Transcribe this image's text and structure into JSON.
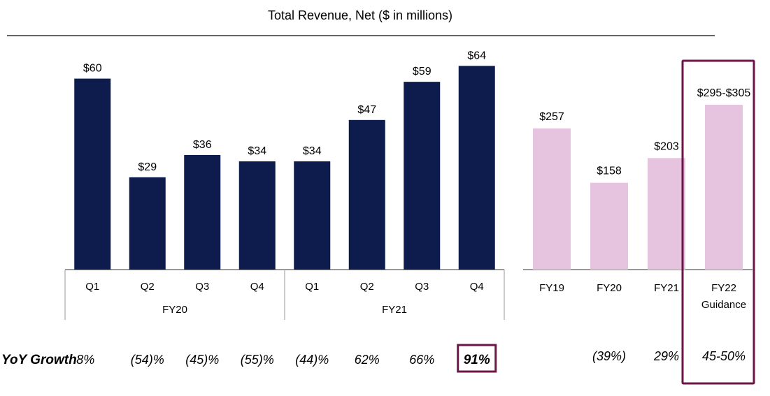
{
  "chart_data": {
    "title": "Total Revenue, Net ($ in millions)",
    "colors": {
      "quarterly": "#0d1c4c",
      "annual": "#e6c3df",
      "highlight": "#6c1548",
      "rule": "#333333"
    },
    "quarterly": {
      "type": "bar",
      "ylim": [
        0,
        70
      ],
      "categories": [
        "Q1",
        "Q2",
        "Q3",
        "Q4",
        "Q1",
        "Q2",
        "Q3",
        "Q4"
      ],
      "groups": [
        {
          "label": "FY20",
          "categories": [
            "Q1",
            "Q2",
            "Q3",
            "Q4"
          ]
        },
        {
          "label": "FY21",
          "categories": [
            "Q1",
            "Q2",
            "Q3",
            "Q4"
          ]
        }
      ],
      "values": [
        60,
        29,
        36,
        34,
        34,
        47,
        59,
        64
      ],
      "value_labels": [
        "$60",
        "$29",
        "$36",
        "$34",
        "$34",
        "$47",
        "$59",
        "$64"
      ]
    },
    "annual": {
      "type": "bar",
      "ylim": [
        0,
        300
      ],
      "categories": [
        "FY19",
        "FY20",
        "FY21",
        "FY22 Guidance"
      ],
      "values": [
        257,
        158,
        203,
        300
      ],
      "value_labels": [
        "$257",
        "$158",
        "$203",
        "$295-$305"
      ],
      "highlighted_category": "FY22 Guidance"
    },
    "yoy_growth": {
      "label": "YoY Growth",
      "quarterly": [
        "8%",
        "(54)%",
        "(45)%",
        "(55)%",
        "(44)%",
        "62%",
        "66%",
        "91%"
      ],
      "highlighted_quarterly": "91%",
      "annual": [
        "",
        "(39%)",
        "29%",
        "45-50%"
      ]
    }
  }
}
